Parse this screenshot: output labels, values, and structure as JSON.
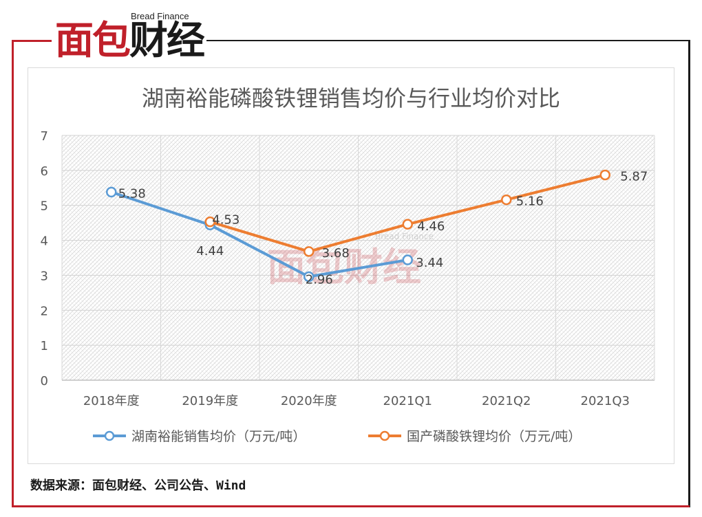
{
  "brand": {
    "logo_en": "Bread Finance",
    "logo_cn_red": "面包",
    "logo_cn_dark": "财经",
    "watermark_en": "Bread Finance",
    "watermark_cn": "面包财经"
  },
  "source": "数据来源：面包财经、公司公告、Wind",
  "colors": {
    "blue": "#5b9bd5",
    "orange": "#ed7d31",
    "brand_red": "#c0202a"
  },
  "chart_data": {
    "type": "line",
    "title": "湖南裕能磷酸铁锂销售均价与行业均价对比",
    "categories": [
      "2018年度",
      "2019年度",
      "2020年度",
      "2021Q1",
      "2021Q2",
      "2021Q3"
    ],
    "ylim": [
      0,
      7
    ],
    "yticks": [
      "0",
      "1",
      "2",
      "3",
      "4",
      "5",
      "6",
      "7"
    ],
    "grid": true,
    "legend_position": "bottom",
    "series": [
      {
        "name": "湖南裕能销售均价（万元/吨）",
        "color": "#5b9bd5",
        "values": [
          5.38,
          4.44,
          2.96,
          3.44,
          null,
          null
        ],
        "labels": [
          "5.38",
          "4.44",
          "2.96",
          "3.44",
          "",
          ""
        ]
      },
      {
        "name": "国产磷酸铁锂均价（万元/吨）",
        "color": "#ed7d31",
        "values": [
          null,
          4.53,
          3.68,
          4.46,
          5.16,
          5.87
        ],
        "labels": [
          "",
          "4.53",
          "3.68",
          "4.46",
          "5.16",
          "5.87"
        ]
      }
    ]
  }
}
